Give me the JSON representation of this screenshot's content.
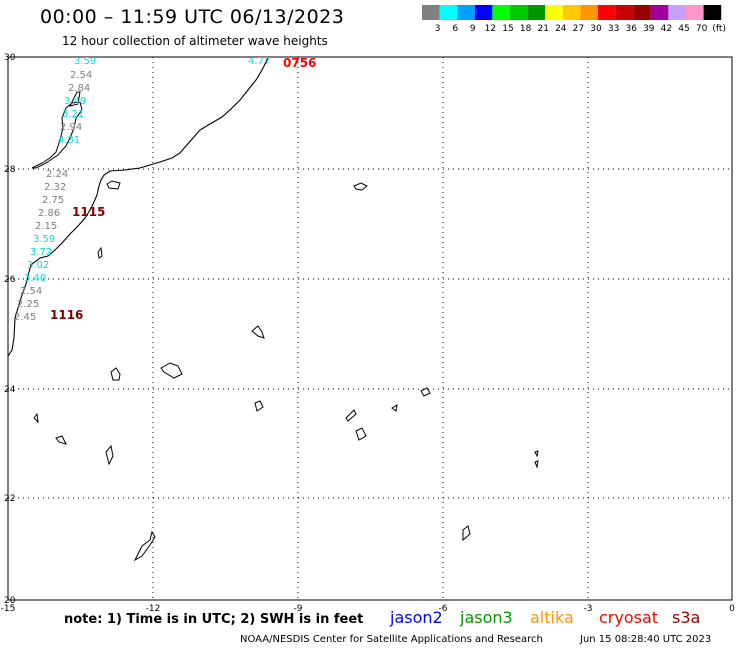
{
  "header": {
    "title": "00:00 – 11:59 UTC 06/13/2023",
    "subtitle": "12 hour collection of altimeter wave heights"
  },
  "colorbar": {
    "units": "(ft)",
    "bins": [
      {
        "label": "3",
        "color": "#808080"
      },
      {
        "label": "6",
        "color": "#00ffff"
      },
      {
        "label": "9",
        "color": "#00a0ff"
      },
      {
        "label": "12",
        "color": "#0000ff"
      },
      {
        "label": "15",
        "color": "#00ff00"
      },
      {
        "label": "18",
        "color": "#00c800"
      },
      {
        "label": "21",
        "color": "#009600"
      },
      {
        "label": "24",
        "color": "#ffff00"
      },
      {
        "label": "27",
        "color": "#ffc800"
      },
      {
        "label": "30",
        "color": "#ff9600"
      },
      {
        "label": "33",
        "color": "#ff0000"
      },
      {
        "label": "36",
        "color": "#c80000"
      },
      {
        "label": "39",
        "color": "#960000"
      },
      {
        "label": "42",
        "color": "#a000a0"
      },
      {
        "label": "45",
        "color": "#c8a0ff"
      },
      {
        "label": "70",
        "color": "#ff96c8"
      },
      {
        "label": "",
        "color": "#000000"
      }
    ]
  },
  "map": {
    "lon_ticks": [
      "-15",
      "-12",
      "-9",
      "-6",
      "-3",
      "0"
    ],
    "lat_ticks": [
      "30",
      "28",
      "26",
      "24",
      "22",
      "20"
    ],
    "swh_labels": [
      {
        "text": "3.59",
        "color": "#00e0e0"
      },
      {
        "text": "2.54",
        "color": "#808080"
      },
      {
        "text": "2.84",
        "color": "#808080"
      },
      {
        "text": "3.49",
        "color": "#00e0e0"
      },
      {
        "text": "3.21",
        "color": "#00e0e0"
      },
      {
        "text": "2.94",
        "color": "#808080"
      },
      {
        "text": "4.31",
        "color": "#00e0e0"
      },
      {
        "text": "4.77",
        "color": "#00e0e0"
      },
      {
        "text": "2.24",
        "color": "#808080"
      },
      {
        "text": "2.32",
        "color": "#808080"
      },
      {
        "text": "2.75",
        "color": "#808080"
      },
      {
        "text": "2.86",
        "color": "#808080"
      },
      {
        "text": "2.15",
        "color": "#808080"
      },
      {
        "text": "3.59",
        "color": "#00e0e0"
      },
      {
        "text": "3.72",
        "color": "#00e0e0"
      },
      {
        "text": "3.02",
        "color": "#00e0e0"
      },
      {
        "text": "3.40",
        "color": "#00e0e0"
      },
      {
        "text": "2.54",
        "color": "#808080"
      },
      {
        "text": "2.25",
        "color": "#808080"
      },
      {
        "text": "2.45",
        "color": "#808080"
      }
    ],
    "time_labels": [
      {
        "text": "0756",
        "color": "#ff0000"
      },
      {
        "text": "1115",
        "color": "#800000"
      },
      {
        "text": "1116",
        "color": "#800000"
      }
    ]
  },
  "note": "note: 1) Time is in UTC; 2) SWH is in feet",
  "satellites": [
    {
      "name": "jason2",
      "color": "#0000ff"
    },
    {
      "name": "jason3",
      "color": "#009600"
    },
    {
      "name": "altika",
      "color": "#ff9600"
    },
    {
      "name": "cryosat",
      "color": "#ff0000"
    },
    {
      "name": "s3a",
      "color": "#960000"
    }
  ],
  "footer": {
    "credit": "NOAA/NESDIS Center for Satellite Applications and Research",
    "timestamp": "Jun 15 08:28:40 UTC 2023"
  }
}
